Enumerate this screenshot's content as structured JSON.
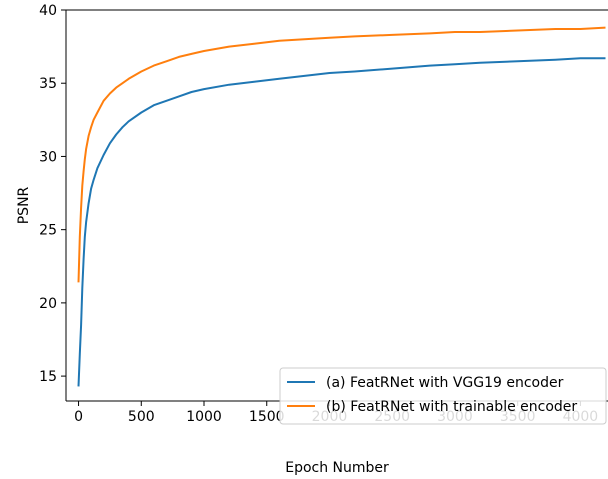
{
  "chart_data": {
    "type": "line",
    "title": "",
    "xlabel": "Epoch Number",
    "ylabel": "PSNR",
    "xlim": [
      -100,
      4220
    ],
    "ylim": [
      13.3,
      40
    ],
    "xticks": [
      0,
      500,
      1000,
      1500,
      2000,
      2500,
      3000,
      3500,
      4000
    ],
    "yticks": [
      15,
      20,
      25,
      30,
      35,
      40
    ],
    "grid": false,
    "legend_position": "lower-right",
    "series": [
      {
        "name": "(a) FeatRNet with VGG19 encoder",
        "color": "#1f77b4",
        "x": [
          0,
          10,
          20,
          30,
          40,
          50,
          60,
          80,
          100,
          120,
          150,
          200,
          250,
          300,
          350,
          400,
          500,
          600,
          700,
          800,
          900,
          1000,
          1200,
          1400,
          1600,
          1800,
          2000,
          2200,
          2500,
          2800,
          3000,
          3200,
          3500,
          3800,
          4000,
          4200
        ],
        "y": [
          14.3,
          16.5,
          18.5,
          21.0,
          23.0,
          24.5,
          25.5,
          26.8,
          27.8,
          28.4,
          29.2,
          30.1,
          30.9,
          31.5,
          32.0,
          32.4,
          33.0,
          33.5,
          33.8,
          34.1,
          34.4,
          34.6,
          34.9,
          35.1,
          35.3,
          35.5,
          35.7,
          35.8,
          36.0,
          36.2,
          36.3,
          36.4,
          36.5,
          36.6,
          36.7,
          36.7
        ]
      },
      {
        "name": "(b) FeatRNet with trainable encoder",
        "color": "#ff7f0e",
        "x": [
          0,
          10,
          20,
          30,
          40,
          50,
          60,
          80,
          100,
          120,
          150,
          200,
          250,
          300,
          350,
          400,
          500,
          600,
          700,
          800,
          900,
          1000,
          1200,
          1400,
          1600,
          1800,
          2000,
          2200,
          2500,
          2800,
          3000,
          3200,
          3500,
          3800,
          4000,
          4200
        ],
        "y": [
          21.4,
          24.5,
          26.5,
          28.0,
          29.0,
          29.8,
          30.5,
          31.4,
          32.0,
          32.5,
          33.0,
          33.8,
          34.3,
          34.7,
          35.0,
          35.3,
          35.8,
          36.2,
          36.5,
          36.8,
          37.0,
          37.2,
          37.5,
          37.7,
          37.9,
          38.0,
          38.1,
          38.2,
          38.3,
          38.4,
          38.5,
          38.5,
          38.6,
          38.7,
          38.7,
          38.8
        ]
      }
    ]
  }
}
